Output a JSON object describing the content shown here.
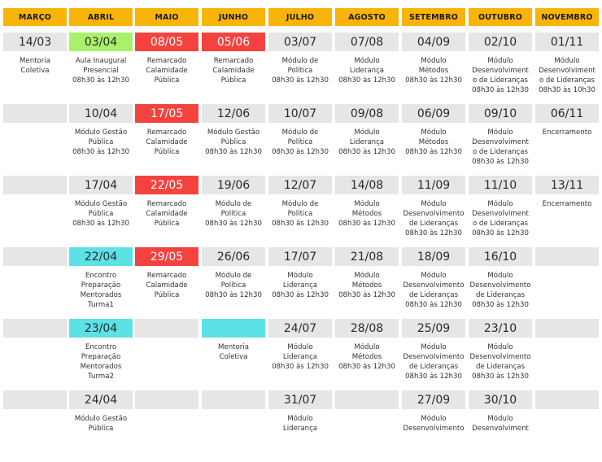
{
  "months": [
    "MARÇO",
    "ABRIL",
    "MAIO",
    "JUNHO",
    "JULHO",
    "AGOSTO",
    "SETEMBRO",
    "OUTUBRO",
    "NOVEMBRO"
  ],
  "colors": {
    "header": "#f9b40a",
    "gray": "#e6e6e6",
    "red": "#f4433f",
    "green": "#a9f06c",
    "cyan": "#5ce1e6"
  },
  "rows": [
    {
      "dates": [
        {
          "t": "14/03",
          "bg": "gray"
        },
        {
          "t": "03/04",
          "bg": "green"
        },
        {
          "t": "08/05",
          "bg": "red"
        },
        {
          "t": "05/06",
          "bg": "red"
        },
        {
          "t": "03/07",
          "bg": "gray"
        },
        {
          "t": "07/08",
          "bg": "gray"
        },
        {
          "t": "04/09",
          "bg": "gray"
        },
        {
          "t": "02/10",
          "bg": "gray"
        },
        {
          "t": "01/11",
          "bg": "gray"
        }
      ],
      "descs": [
        "Mentoria\nColetiva",
        "Aula Inaugural\nPresencial\n08h30 às 12h30",
        "Remarcado\nCalamidade\nPública",
        "Remarcado\nCalamidade\nPública",
        "Módulo de\nPolítica\n08h30 às 12h30",
        "Módulo\nLiderança\n08h30 às 12h30",
        "Módulo\nMétodos\n08h30 às 12h30",
        "Módulo\nDesenvolviment\no de Lideranças\n08h30 às 12h30",
        "Módulo\nDesenvolviment\no de Lideranças\n08h30 às 10h30"
      ]
    },
    {
      "dates": [
        {
          "t": "",
          "bg": "gray"
        },
        {
          "t": "10/04",
          "bg": "gray"
        },
        {
          "t": "17/05",
          "bg": "red"
        },
        {
          "t": "12/06",
          "bg": "gray"
        },
        {
          "t": "10/07",
          "bg": "gray"
        },
        {
          "t": "09/08",
          "bg": "gray"
        },
        {
          "t": "06/09",
          "bg": "gray"
        },
        {
          "t": "09/10",
          "bg": "gray"
        },
        {
          "t": "06/11",
          "bg": "gray"
        }
      ],
      "descs": [
        "",
        "Módulo Gestão\nPública\n08h30 às 12h30",
        "Remarcado\nCalamidade\nPública",
        "Módulo Gestão\nPública\n08h30 às 12h30",
        "Módulo de\nPolítica\n08h30 às 12h30",
        "Módulo\nLiderança\n08h30 às 12h30",
        "Módulo\nMétodos\n08h30 às 12h30",
        "Módulo\nDesenvolviment\no de Lideranças\n08h30 às 12h30",
        "Encerramento"
      ]
    },
    {
      "dates": [
        {
          "t": "",
          "bg": "gray"
        },
        {
          "t": "17/04",
          "bg": "gray"
        },
        {
          "t": "22/05",
          "bg": "red"
        },
        {
          "t": "19/06",
          "bg": "gray"
        },
        {
          "t": "12/07",
          "bg": "gray"
        },
        {
          "t": "14/08",
          "bg": "gray"
        },
        {
          "t": "11/09",
          "bg": "gray"
        },
        {
          "t": "11/10",
          "bg": "gray"
        },
        {
          "t": "13/11",
          "bg": "gray"
        }
      ],
      "descs": [
        "",
        "Módulo Gestão\nPública\n08h30 às 12h30",
        "Remarcado\nCalamidade\nPública",
        "Módulo de\nPolítica\n08h30 às 12h30",
        "Módulo de\nPolítica\n08h30 às 12h30",
        "Módulo\nMétodos\n08h30 às 12h30",
        "Módulo\nDesenvolvimento\nde Lideranças\n08h30 às 12h30",
        "Módulo\nDesenvolviment\no de Lideranças\n08h30 às 12h30",
        "Encerramento"
      ]
    },
    {
      "dates": [
        {
          "t": "",
          "bg": "gray"
        },
        {
          "t": "22/04",
          "bg": "cyan"
        },
        {
          "t": "29/05",
          "bg": "red"
        },
        {
          "t": "26/06",
          "bg": "gray"
        },
        {
          "t": "17/07",
          "bg": "gray"
        },
        {
          "t": "21/08",
          "bg": "gray"
        },
        {
          "t": "18/09",
          "bg": "gray"
        },
        {
          "t": "16/10",
          "bg": "gray"
        },
        {
          "t": "",
          "bg": "gray"
        }
      ],
      "descs": [
        "",
        "Encontro\nPreparação\nMentorados\nTurma1",
        "Remarcado\nCalamidade\nPública",
        "Módulo de\nPolítica\n08h30 às 12h30",
        "Módulo\nLiderança\n08h30 às 12h30",
        "Módulo\nMétodos\n08h30 às 12h30",
        "Módulo\nDesenvolvimento\nde Lideranças\n08h30 às 12h30",
        "Módulo\nDesenvolvimento\nde Lideranças\n08h30 às 12h30",
        ""
      ]
    },
    {
      "dates": [
        {
          "t": "",
          "bg": "gray"
        },
        {
          "t": "23/04",
          "bg": "cyan"
        },
        {
          "t": "",
          "bg": "gray"
        },
        {
          "t": "",
          "bg": "cyan"
        },
        {
          "t": "24/07",
          "bg": "gray"
        },
        {
          "t": "28/08",
          "bg": "gray"
        },
        {
          "t": "25/09",
          "bg": "gray"
        },
        {
          "t": "23/10",
          "bg": "gray"
        },
        {
          "t": "",
          "bg": "gray"
        }
      ],
      "descs": [
        "",
        "Encontro\nPreparação\nMentorados\nTurma2",
        "",
        "Mentoria\nColetiva",
        "Módulo\nLiderança\n08h30 às 12h30",
        "Módulo\nMétodos\n08h30 às 12h30",
        "Módulo\nDesenvolvimento\nde Lideranças\n08h30 às 12h30",
        "Módulo\nDesenvolvimento\nde Lideranças\n08h30 às 12h30",
        ""
      ]
    },
    {
      "dates": [
        {
          "t": "",
          "bg": "gray"
        },
        {
          "t": "24/04",
          "bg": "gray"
        },
        {
          "t": "",
          "bg": "gray"
        },
        {
          "t": "",
          "bg": "gray"
        },
        {
          "t": "31/07",
          "bg": "gray"
        },
        {
          "t": "",
          "bg": "gray"
        },
        {
          "t": "27/09",
          "bg": "gray"
        },
        {
          "t": "30/10",
          "bg": "gray"
        },
        {
          "t": "",
          "bg": "gray"
        }
      ],
      "descs": [
        "",
        "Módulo Gestão\nPública",
        "",
        "",
        "Módulo\nLiderança",
        "",
        "Módulo\nDesenvolvimento",
        "Módulo\nDesenvolviment",
        ""
      ]
    }
  ]
}
